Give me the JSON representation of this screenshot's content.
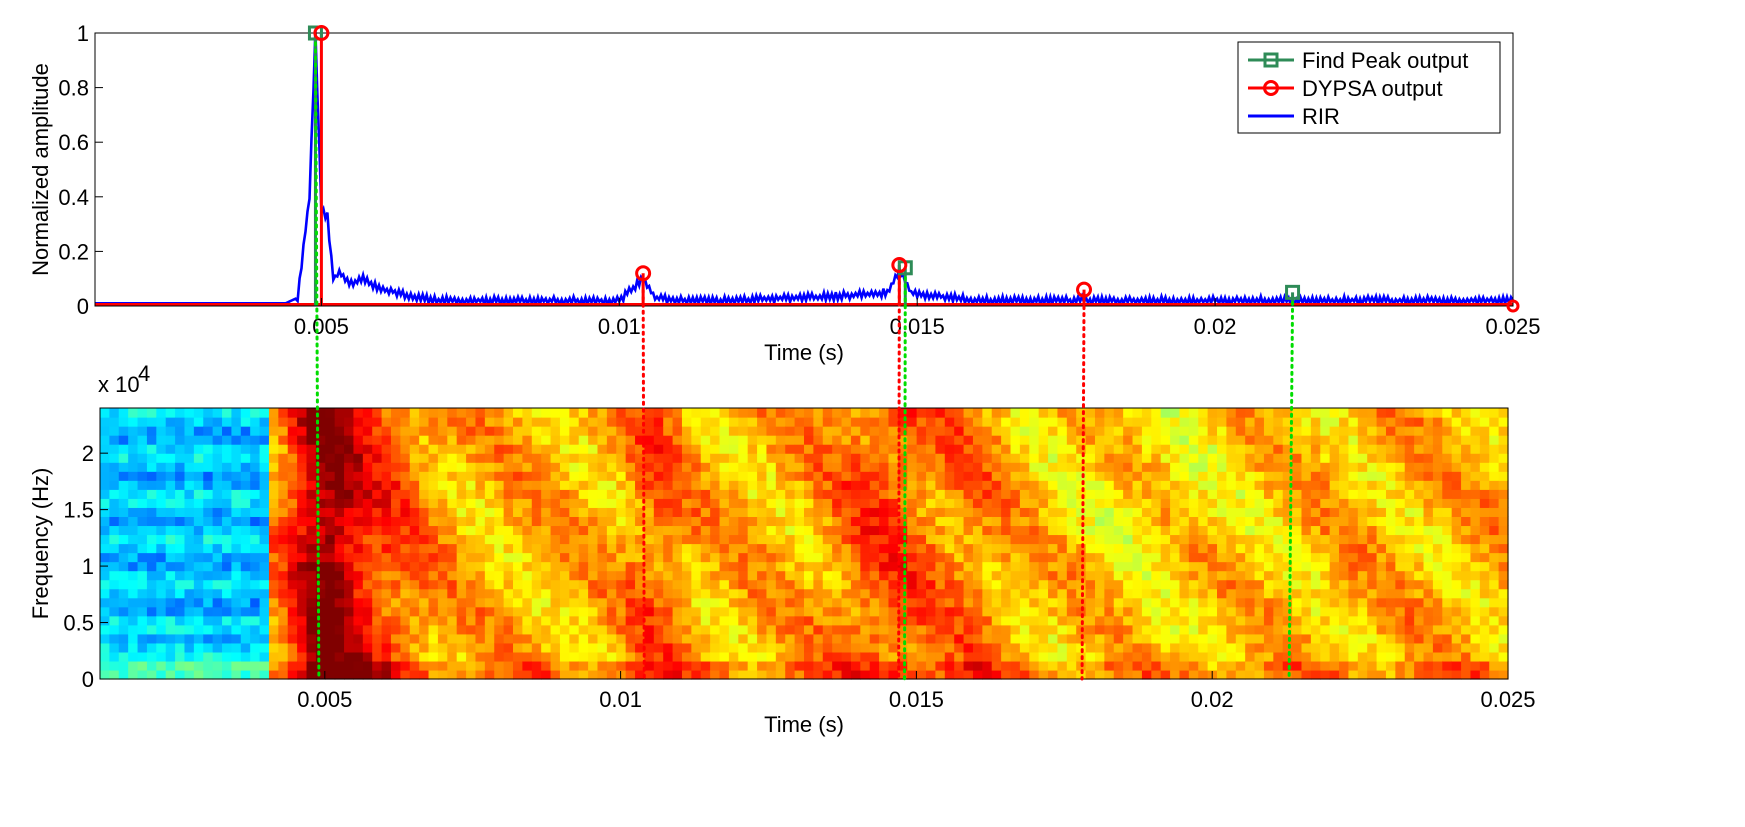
{
  "chart_data": [
    {
      "type": "line",
      "xlabel": "Time (s)",
      "ylabel": "Normalized amplitude",
      "xlim": [
        0.0012,
        0.025
      ],
      "ylim": [
        0,
        1
      ],
      "x_ticks": [
        "0.005",
        "0.01",
        "0.015",
        "0.02",
        "0.025"
      ],
      "x_tick_values": [
        0.005,
        0.01,
        0.015,
        0.02,
        0.025
      ],
      "y_ticks": [
        "0",
        "0.2",
        "0.4",
        "0.6",
        "0.8",
        "1"
      ],
      "y_tick_values": [
        0,
        0.2,
        0.4,
        0.6,
        0.8,
        1
      ],
      "legend_position": "top-right",
      "series": [
        {
          "name": "Find Peak output",
          "color": "#2e8b57",
          "marker": "square",
          "x": [
            0.0049,
            0.0148,
            0.0213
          ],
          "values": [
            1.0,
            0.14,
            0.05
          ]
        },
        {
          "name": "DYPSA output",
          "color": "#ff0000",
          "marker": "circle",
          "x": [
            0.005,
            0.0104,
            0.0147,
            0.0178
          ],
          "values": [
            1.0,
            0.12,
            0.15,
            0.06
          ],
          "baseline_value": 0.0
        },
        {
          "name": "RIR",
          "color": "#0000ff",
          "marker": "none",
          "x": [
            0.0012,
            0.0044,
            0.0046,
            0.0048,
            0.0049,
            0.005,
            0.0051,
            0.0052,
            0.0053,
            0.0055,
            0.0057,
            0.006,
            0.0063,
            0.0066,
            0.007,
            0.008,
            0.009,
            0.01,
            0.0104,
            0.0106,
            0.011,
            0.012,
            0.013,
            0.014,
            0.0145,
            0.0147,
            0.0149,
            0.0152,
            0.016,
            0.0178,
            0.02,
            0.0213,
            0.023,
            0.025
          ],
          "values": [
            0.01,
            0.01,
            0.03,
            0.4,
            1.0,
            0.35,
            0.33,
            0.1,
            0.12,
            0.08,
            0.1,
            0.06,
            0.05,
            0.03,
            0.02,
            0.02,
            0.02,
            0.02,
            0.1,
            0.03,
            0.02,
            0.02,
            0.03,
            0.04,
            0.05,
            0.13,
            0.05,
            0.04,
            0.02,
            0.02,
            0.02,
            0.02,
            0.02,
            0.02
          ]
        }
      ],
      "guide_lines": [
        {
          "x": 0.0049,
          "color": "#00dd00"
        },
        {
          "x": 0.0148,
          "color": "#00dd00"
        },
        {
          "x": 0.0213,
          "color": "#00dd00"
        },
        {
          "x": 0.0104,
          "color": "#ff0000"
        },
        {
          "x": 0.0147,
          "color": "#ff0000"
        },
        {
          "x": 0.0178,
          "color": "#ff0000"
        }
      ]
    },
    {
      "type": "heatmap",
      "xlabel": "Time (s)",
      "ylabel": "Frequency (Hz)",
      "y_exponent": "x 10",
      "y_exponent_power": "4",
      "xlim": [
        0.0012,
        0.025
      ],
      "ylim": [
        0,
        24000
      ],
      "x_ticks": [
        "0.005",
        "0.01",
        "0.015",
        "0.02",
        "0.025"
      ],
      "x_tick_values": [
        0.005,
        0.01,
        0.015,
        0.02,
        0.025
      ],
      "y_ticks": [
        "0",
        "0.5",
        "1",
        "1.5",
        "2"
      ],
      "y_tick_values": [
        0,
        5000,
        10000,
        15000,
        20000
      ],
      "colormap": "jet"
    }
  ]
}
